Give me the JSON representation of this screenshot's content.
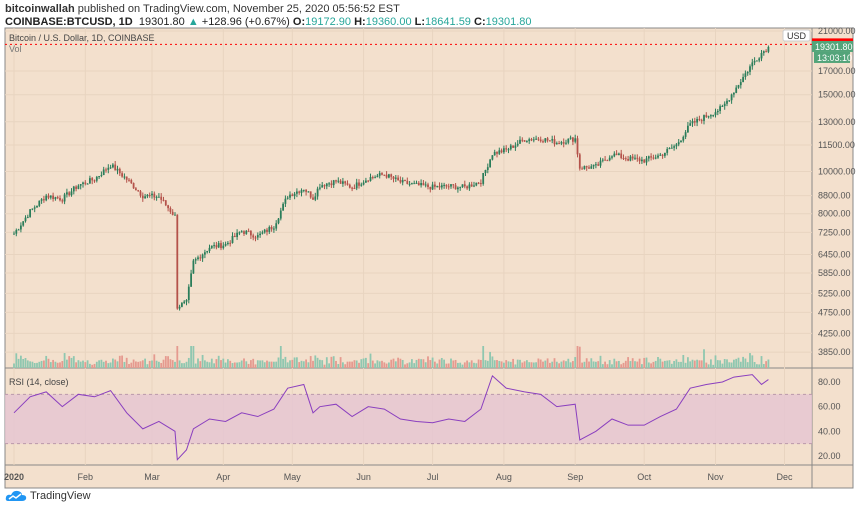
{
  "header": {
    "author": "bitcoinwallah",
    "published": "published on TradingView.com, November 25, 2020 05:56:52 EST",
    "symbol": "COINBASE:BTCUSD, 1D",
    "last": "19301.80",
    "change": "+128.96 (+0.67%)",
    "o_label": "O:",
    "o": "19172.90",
    "h_label": "H:",
    "h": "19360.00",
    "l_label": "L:",
    "l": "18641.59",
    "c_label": "C:",
    "c": "19301.80"
  },
  "chart_data": [
    {
      "type": "candlestick",
      "title": "Bitcoin / U.S. Dollar, 1D, COINBASE",
      "volume_label": "Vol",
      "scale": "log",
      "currency": "USD",
      "y_ticks": [
        21000,
        17000,
        15000,
        13000,
        11500,
        10000,
        8800,
        8000,
        7250,
        6450,
        5850,
        5250,
        4750,
        4250,
        3850
      ],
      "last_price": "19301.80",
      "countdown": "13:03:10",
      "high_line": "19360.00",
      "x_ticks": [
        "2020",
        "Feb",
        "Mar",
        "Apr",
        "May",
        "Jun",
        "Jul",
        "Aug",
        "Sep",
        "Oct",
        "Nov",
        "Dec"
      ],
      "closes": [
        [
          "2020-01-01",
          7200
        ],
        [
          "2020-01-08",
          8100
        ],
        [
          "2020-01-15",
          8800
        ],
        [
          "2020-01-22",
          8650
        ],
        [
          "2020-01-29",
          9300
        ],
        [
          "2020-02-05",
          9600
        ],
        [
          "2020-02-12",
          10350
        ],
        [
          "2020-02-19",
          9600
        ],
        [
          "2020-02-26",
          8800
        ],
        [
          "2020-03-04",
          8750
        ],
        [
          "2020-03-11",
          7900
        ],
        [
          "2020-03-12",
          4900
        ],
        [
          "2020-03-16",
          5000
        ],
        [
          "2020-03-19",
          6200
        ],
        [
          "2020-03-26",
          6700
        ],
        [
          "2020-04-02",
          6800
        ],
        [
          "2020-04-09",
          7300
        ],
        [
          "2020-04-16",
          7100
        ],
        [
          "2020-04-23",
          7500
        ],
        [
          "2020-04-29",
          8800
        ],
        [
          "2020-05-06",
          9150
        ],
        [
          "2020-05-10",
          8700
        ],
        [
          "2020-05-13",
          9300
        ],
        [
          "2020-05-20",
          9500
        ],
        [
          "2020-05-27",
          9200
        ],
        [
          "2020-06-03",
          9650
        ],
        [
          "2020-06-10",
          9850
        ],
        [
          "2020-06-17",
          9450
        ],
        [
          "2020-06-24",
          9300
        ],
        [
          "2020-07-01",
          9200
        ],
        [
          "2020-07-08",
          9250
        ],
        [
          "2020-07-15",
          9200
        ],
        [
          "2020-07-22",
          9500
        ],
        [
          "2020-07-27",
          11000
        ],
        [
          "2020-08-02",
          11200
        ],
        [
          "2020-08-10",
          11850
        ],
        [
          "2020-08-17",
          11900
        ],
        [
          "2020-08-24",
          11650
        ],
        [
          "2020-09-01",
          11900
        ],
        [
          "2020-09-03",
          10200
        ],
        [
          "2020-09-10",
          10250
        ],
        [
          "2020-09-17",
          10950
        ],
        [
          "2020-09-24",
          10700
        ],
        [
          "2020-10-01",
          10600
        ],
        [
          "2020-10-08",
          10900
        ],
        [
          "2020-10-15",
          11500
        ],
        [
          "2020-10-21",
          12800
        ],
        [
          "2020-10-28",
          13400
        ],
        [
          "2020-11-04",
          14000
        ],
        [
          "2020-11-09",
          15300
        ],
        [
          "2020-11-17",
          17700
        ],
        [
          "2020-11-21",
          18700
        ],
        [
          "2020-11-24",
          19301.8
        ]
      ]
    },
    {
      "type": "line",
      "title": "RSI (14, close)",
      "y_ticks": [
        80,
        60,
        40,
        20
      ],
      "band": [
        30,
        70
      ],
      "values": [
        [
          "2020-01-01",
          55
        ],
        [
          "2020-01-08",
          68
        ],
        [
          "2020-01-15",
          72
        ],
        [
          "2020-01-22",
          60
        ],
        [
          "2020-01-29",
          70
        ],
        [
          "2020-02-05",
          68
        ],
        [
          "2020-02-12",
          73
        ],
        [
          "2020-02-19",
          55
        ],
        [
          "2020-02-26",
          42
        ],
        [
          "2020-03-04",
          48
        ],
        [
          "2020-03-11",
          40
        ],
        [
          "2020-03-12",
          17
        ],
        [
          "2020-03-16",
          25
        ],
        [
          "2020-03-19",
          42
        ],
        [
          "2020-03-26",
          50
        ],
        [
          "2020-04-02",
          48
        ],
        [
          "2020-04-09",
          55
        ],
        [
          "2020-04-16",
          52
        ],
        [
          "2020-04-23",
          58
        ],
        [
          "2020-04-29",
          75
        ],
        [
          "2020-05-06",
          78
        ],
        [
          "2020-05-10",
          55
        ],
        [
          "2020-05-13",
          60
        ],
        [
          "2020-05-20",
          62
        ],
        [
          "2020-05-27",
          52
        ],
        [
          "2020-06-03",
          60
        ],
        [
          "2020-06-10",
          58
        ],
        [
          "2020-06-17",
          50
        ],
        [
          "2020-06-24",
          48
        ],
        [
          "2020-07-01",
          47
        ],
        [
          "2020-07-08",
          50
        ],
        [
          "2020-07-15",
          48
        ],
        [
          "2020-07-22",
          58
        ],
        [
          "2020-07-27",
          85
        ],
        [
          "2020-08-02",
          75
        ],
        [
          "2020-08-10",
          72
        ],
        [
          "2020-08-17",
          70
        ],
        [
          "2020-08-24",
          60
        ],
        [
          "2020-09-01",
          62
        ],
        [
          "2020-09-03",
          33
        ],
        [
          "2020-09-10",
          40
        ],
        [
          "2020-09-17",
          50
        ],
        [
          "2020-09-24",
          45
        ],
        [
          "2020-10-01",
          45
        ],
        [
          "2020-10-08",
          52
        ],
        [
          "2020-10-15",
          58
        ],
        [
          "2020-10-21",
          75
        ],
        [
          "2020-10-28",
          78
        ],
        [
          "2020-11-04",
          80
        ],
        [
          "2020-11-09",
          84
        ],
        [
          "2020-11-17",
          86
        ],
        [
          "2020-11-21",
          78
        ],
        [
          "2020-11-24",
          82
        ]
      ]
    }
  ],
  "colors": {
    "bg": "#f3e0cd",
    "up": "#2a7d5a",
    "down": "#b4524a",
    "vol_up": "#8fc7b0",
    "vol_down": "#e59a8f",
    "rsi": "#8a3fbf",
    "band": "#e5c4d2",
    "last": "#53a47a",
    "high": "#ff0000"
  },
  "footer": {
    "brand": "TradingView"
  }
}
